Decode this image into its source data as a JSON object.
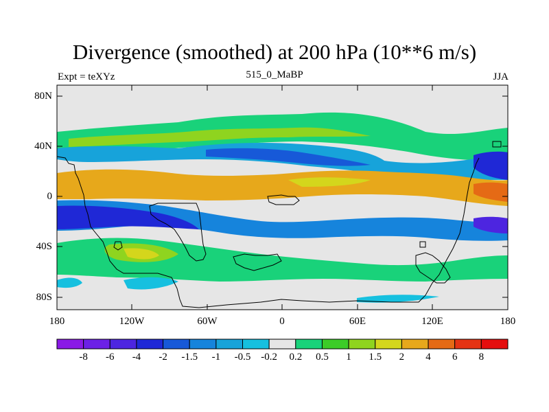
{
  "title": "Divergence (smoothed) at 200 hPa (10**6 m/s)",
  "left_string": "Expt = teXYz",
  "center_string": "515_0_MaBP",
  "right_string": "JJA",
  "lat_ticks": [
    "80N",
    "40N",
    "0",
    "40S",
    "80S"
  ],
  "lon_ticks": [
    "180",
    "120W",
    "60W",
    "0",
    "60E",
    "120E",
    "180"
  ],
  "colorbar": {
    "levels": [
      "-8",
      "-6",
      "-4",
      "-2",
      "-1.5",
      "-1",
      "-0.5",
      "-0.2",
      "0.2",
      "0.5",
      "1",
      "1.5",
      "2",
      "4",
      "6",
      "8"
    ],
    "colors": [
      "#8a1ae6",
      "#6c20e6",
      "#4d25e0",
      "#1f28d6",
      "#1759d8",
      "#1684dc",
      "#17a3da",
      "#16c0df",
      "#e6e6e6",
      "#19d27a",
      "#3ccc28",
      "#8fd41f",
      "#d4d61c",
      "#e7a81b",
      "#e56a15",
      "#e53313",
      "#e50e0e"
    ]
  },
  "colors": {
    "background": "#e6e6e6",
    "coast": "#000000"
  }
}
